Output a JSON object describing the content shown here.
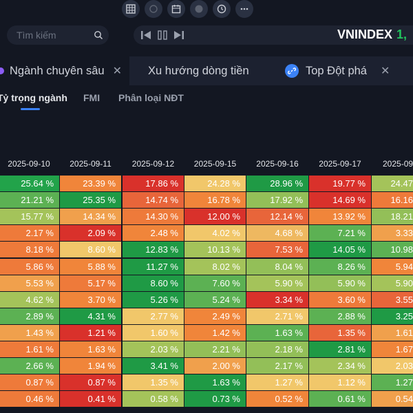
{
  "toolbar": {
    "icons": [
      "table-icon",
      "zoom-icon",
      "calendar-icon",
      "dollar-icon",
      "clock-icon",
      "more-icon"
    ],
    "search_placeholder": "Tìm kiếm",
    "index_name": "VNINDEX",
    "index_value": "1,"
  },
  "tabs": [
    {
      "label": "Ngành chuyên sâu",
      "active": true
    },
    {
      "label": "Xu hướng dòng tiền",
      "active": false
    },
    {
      "label": "Top Đột phá",
      "active": false
    }
  ],
  "subtabs": [
    {
      "label": "Tỷ trọng ngành",
      "active": true
    },
    {
      "label": "FMI",
      "active": false
    },
    {
      "label": "Phân loại NĐT",
      "active": false
    }
  ],
  "table": {
    "headers": [
      "2025-09-10",
      "2025-09-11",
      "2025-09-12",
      "2025-09-15",
      "2025-09-16",
      "2025-09-17",
      "2025-09-"
    ],
    "rows": [
      [
        {
          "v": "25.64 %",
          "c": "#22a34a"
        },
        {
          "v": "23.39 %",
          "c": "#f0853a"
        },
        {
          "v": "17.86 %",
          "c": "#d9312b"
        },
        {
          "v": "24.28 %",
          "c": "#f1c76a"
        },
        {
          "v": "28.96 %",
          "c": "#1f9a45"
        },
        {
          "v": "19.77 %",
          "c": "#d9312b"
        },
        {
          "v": "24.47",
          "c": "#a4c35a"
        }
      ],
      [
        {
          "v": "21.21 %",
          "c": "#5cb153"
        },
        {
          "v": "25.35 %",
          "c": "#1f9a45"
        },
        {
          "v": "14.74 %",
          "c": "#e8653a"
        },
        {
          "v": "16.78 %",
          "c": "#f0853a"
        },
        {
          "v": "17.92 %",
          "c": "#93bf58"
        },
        {
          "v": "14.69 %",
          "c": "#d9312b"
        },
        {
          "v": "16.16",
          "c": "#ee7a3a"
        }
      ],
      [
        {
          "v": "15.77 %",
          "c": "#a4c35a"
        },
        {
          "v": "14.34 %",
          "c": "#f0a04c"
        },
        {
          "v": "14.30 %",
          "c": "#ee7a3a"
        },
        {
          "v": "12.00 %",
          "c": "#d9312b"
        },
        {
          "v": "12.14 %",
          "c": "#e8653a"
        },
        {
          "v": "13.92 %",
          "c": "#f0853a"
        },
        {
          "v": "18.21",
          "c": "#93bf58"
        }
      ],
      [
        {
          "v": "2.17 %",
          "c": "#ee7a3a"
        },
        {
          "v": "2.09 %",
          "c": "#d9312b"
        },
        {
          "v": "2.48 %",
          "c": "#f0853a"
        },
        {
          "v": "4.02 %",
          "c": "#f1c76a"
        },
        {
          "v": "4.68 %",
          "c": "#eeb860"
        },
        {
          "v": "7.21 %",
          "c": "#5cb153"
        },
        {
          "v": "3.33",
          "c": "#f0a04c"
        }
      ],
      [
        {
          "v": "8.18 %",
          "c": "#ee7a3a"
        },
        {
          "v": "8.60 %",
          "c": "#f1c76a"
        },
        {
          "v": "12.83 %",
          "c": "#1f9a45"
        },
        {
          "v": "10.13 %",
          "c": "#a4c35a"
        },
        {
          "v": "7.53 %",
          "c": "#e8653a"
        },
        {
          "v": "14.05 %",
          "c": "#1f9a45"
        },
        {
          "v": "10.98",
          "c": "#5cb153"
        }
      ],
      [
        {
          "v": "5.86 %",
          "c": "#ee7a3a"
        },
        {
          "v": "5.88 %",
          "c": "#f0853a"
        },
        {
          "v": "11.27 %",
          "c": "#1f9a45"
        },
        {
          "v": "8.02 %",
          "c": "#a4c35a"
        },
        {
          "v": "8.04 %",
          "c": "#93bf58"
        },
        {
          "v": "8.26 %",
          "c": "#5cb153"
        },
        {
          "v": "5.94",
          "c": "#f0853a"
        }
      ],
      [
        {
          "v": "5.53 %",
          "c": "#f0a04c"
        },
        {
          "v": "5.17 %",
          "c": "#ee7a3a"
        },
        {
          "v": "8.60 %",
          "c": "#1f9a45"
        },
        {
          "v": "7.60 %",
          "c": "#5cb153"
        },
        {
          "v": "5.90 %",
          "c": "#a4c35a"
        },
        {
          "v": "5.90 %",
          "c": "#93bf58"
        },
        {
          "v": "5.90",
          "c": "#a4c35a"
        }
      ],
      [
        {
          "v": "4.62 %",
          "c": "#a4c35a"
        },
        {
          "v": "3.70 %",
          "c": "#f0853a"
        },
        {
          "v": "5.26 %",
          "c": "#1f9a45"
        },
        {
          "v": "5.24 %",
          "c": "#5cb153"
        },
        {
          "v": "3.34 %",
          "c": "#d9312b"
        },
        {
          "v": "3.60 %",
          "c": "#ee7a3a"
        },
        {
          "v": "3.55",
          "c": "#e8653a"
        }
      ],
      [
        {
          "v": "2.89 %",
          "c": "#5cb153"
        },
        {
          "v": "4.31 %",
          "c": "#1f9a45"
        },
        {
          "v": "2.77 %",
          "c": "#f1c76a"
        },
        {
          "v": "2.49 %",
          "c": "#f0853a"
        },
        {
          "v": "2.71 %",
          "c": "#f1c76a"
        },
        {
          "v": "2.88 %",
          "c": "#5cb153"
        },
        {
          "v": "3.25",
          "c": "#1f9a45"
        }
      ],
      [
        {
          "v": "1.43 %",
          "c": "#f0a04c"
        },
        {
          "v": "1.21 %",
          "c": "#d9312b"
        },
        {
          "v": "1.60 %",
          "c": "#f1c76a"
        },
        {
          "v": "1.42 %",
          "c": "#f0853a"
        },
        {
          "v": "1.63 %",
          "c": "#5cb153"
        },
        {
          "v": "1.35 %",
          "c": "#e8653a"
        },
        {
          "v": "1.61",
          "c": "#f0a04c"
        }
      ],
      [
        {
          "v": "1.61 %",
          "c": "#ee7a3a"
        },
        {
          "v": "1.63 %",
          "c": "#f0853a"
        },
        {
          "v": "2.03 %",
          "c": "#a4c35a"
        },
        {
          "v": "2.21 %",
          "c": "#93bf58"
        },
        {
          "v": "2.18 %",
          "c": "#93bf58"
        },
        {
          "v": "2.81 %",
          "c": "#1f9a45"
        },
        {
          "v": "1.67",
          "c": "#f0853a"
        }
      ],
      [
        {
          "v": "2.66 %",
          "c": "#5cb153"
        },
        {
          "v": "1.94 %",
          "c": "#f0853a"
        },
        {
          "v": "3.41 %",
          "c": "#1f9a45"
        },
        {
          "v": "2.00 %",
          "c": "#f0a04c"
        },
        {
          "v": "2.17 %",
          "c": "#93bf58"
        },
        {
          "v": "2.34 %",
          "c": "#a4c35a"
        },
        {
          "v": "2.03",
          "c": "#f1c76a"
        }
      ],
      [
        {
          "v": "0.87 %",
          "c": "#ee7a3a"
        },
        {
          "v": "0.87 %",
          "c": "#d9312b"
        },
        {
          "v": "1.35 %",
          "c": "#f1c76a"
        },
        {
          "v": "1.63 %",
          "c": "#1f9a45"
        },
        {
          "v": "1.27 %",
          "c": "#f1c76a"
        },
        {
          "v": "1.12 %",
          "c": "#f1c76a"
        },
        {
          "v": "1.27",
          "c": "#5cb153"
        }
      ],
      [
        {
          "v": "0.46 %",
          "c": "#ee7a3a"
        },
        {
          "v": "0.41 %",
          "c": "#d9312b"
        },
        {
          "v": "0.58 %",
          "c": "#a4c35a"
        },
        {
          "v": "0.73 %",
          "c": "#1f9a45"
        },
        {
          "v": "0.52 %",
          "c": "#f0853a"
        },
        {
          "v": "0.61 %",
          "c": "#5cb153"
        },
        {
          "v": "0.54",
          "c": "#f0a04c"
        }
      ]
    ]
  }
}
